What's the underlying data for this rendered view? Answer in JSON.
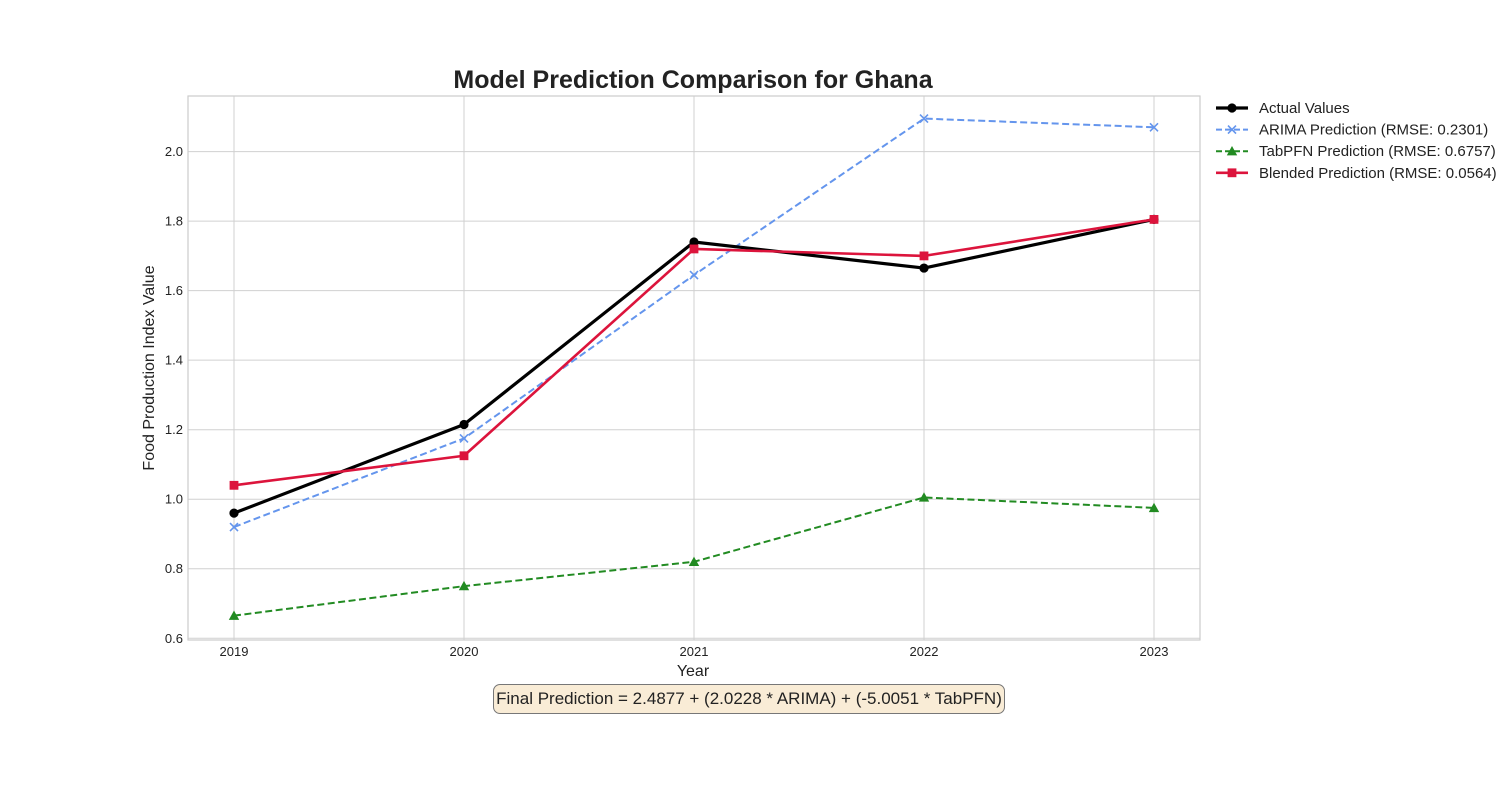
{
  "chart_data": {
    "type": "line",
    "title": "Model Prediction Comparison for Ghana",
    "xlabel": "Year",
    "ylabel": "Food Production Index Value",
    "x": [
      2019,
      2020,
      2021,
      2022,
      2023
    ],
    "x_tick_labels": [
      "2019",
      "2020",
      "2021",
      "2022",
      "2023"
    ],
    "y_ticks": [
      0.6,
      0.8,
      1.0,
      1.2,
      1.4,
      1.6,
      1.8,
      2.0
    ],
    "y_tick_labels": [
      "0.6",
      "0.8",
      "1.0",
      "1.2",
      "1.4",
      "1.6",
      "1.8",
      "2.0"
    ],
    "ylim": [
      0.595,
      2.16
    ],
    "xlim": [
      2018.8,
      2023.2
    ],
    "grid": true,
    "legend_position": "outside-right-top",
    "series": [
      {
        "name": "Actual Values",
        "values": [
          0.96,
          1.215,
          1.74,
          1.665,
          1.805
        ],
        "color": "#000000",
        "line_style": "solid",
        "marker": "circle"
      },
      {
        "name": "ARIMA Prediction (RMSE: 0.2301)",
        "values": [
          0.92,
          1.175,
          1.645,
          2.095,
          2.07
        ],
        "color": "#6495ED",
        "line_style": "dashed",
        "marker": "x"
      },
      {
        "name": "TabPFN Prediction (RMSE: 0.6757)",
        "values": [
          0.665,
          0.75,
          0.82,
          1.005,
          0.975
        ],
        "color": "#228B22",
        "line_style": "dashed",
        "marker": "triangle"
      },
      {
        "name": "Blended Prediction (RMSE: 0.0564)",
        "values": [
          1.04,
          1.125,
          1.72,
          1.7,
          1.805
        ],
        "color": "#DC143C",
        "line_style": "solid",
        "marker": "square"
      }
    ],
    "annotation": "Final Prediction = 2.4877 + (2.0228 * ARIMA) + (-5.0051 * TabPFN)"
  }
}
